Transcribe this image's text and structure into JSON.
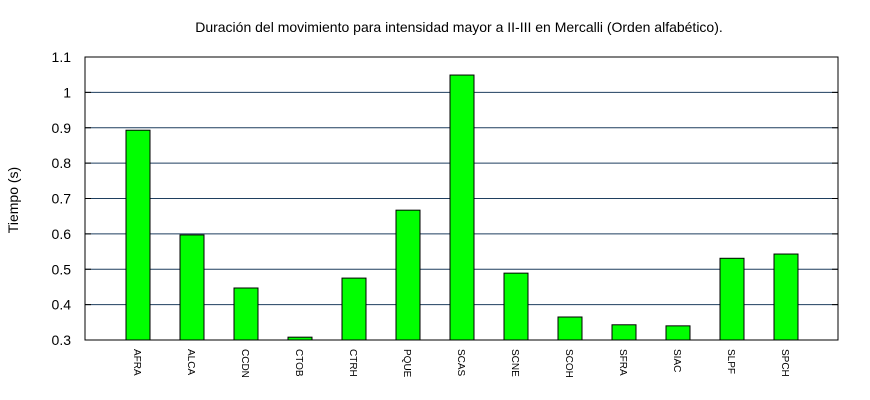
{
  "chart_data": {
    "type": "bar",
    "title": "Duración del movimiento para intensidad mayor a II-III en Mercalli (Orden alfabético).",
    "xlabel": "",
    "ylabel": "Tiempo (s)",
    "ylim": [
      0.3,
      1.1
    ],
    "yticks": [
      "0.3",
      "0.4",
      "0.5",
      "0.6",
      "0.7",
      "0.8",
      "0.9",
      "1",
      "1.1"
    ],
    "grid": true,
    "legend": "none",
    "categories": [
      "AFRA",
      "ALCA",
      "CCDN",
      "CTOB",
      "CTRH",
      "PQUE",
      "SCAS",
      "SCNE",
      "SCOH",
      "SFRA",
      "SIAC",
      "SLPF",
      "SPCH"
    ],
    "values": [
      0.893,
      0.597,
      0.447,
      0.308,
      0.475,
      0.667,
      1.049,
      0.489,
      0.365,
      0.343,
      0.34,
      0.531,
      0.543
    ],
    "bar_color": "#00ff00",
    "grid_color": "#1f3f5f"
  }
}
